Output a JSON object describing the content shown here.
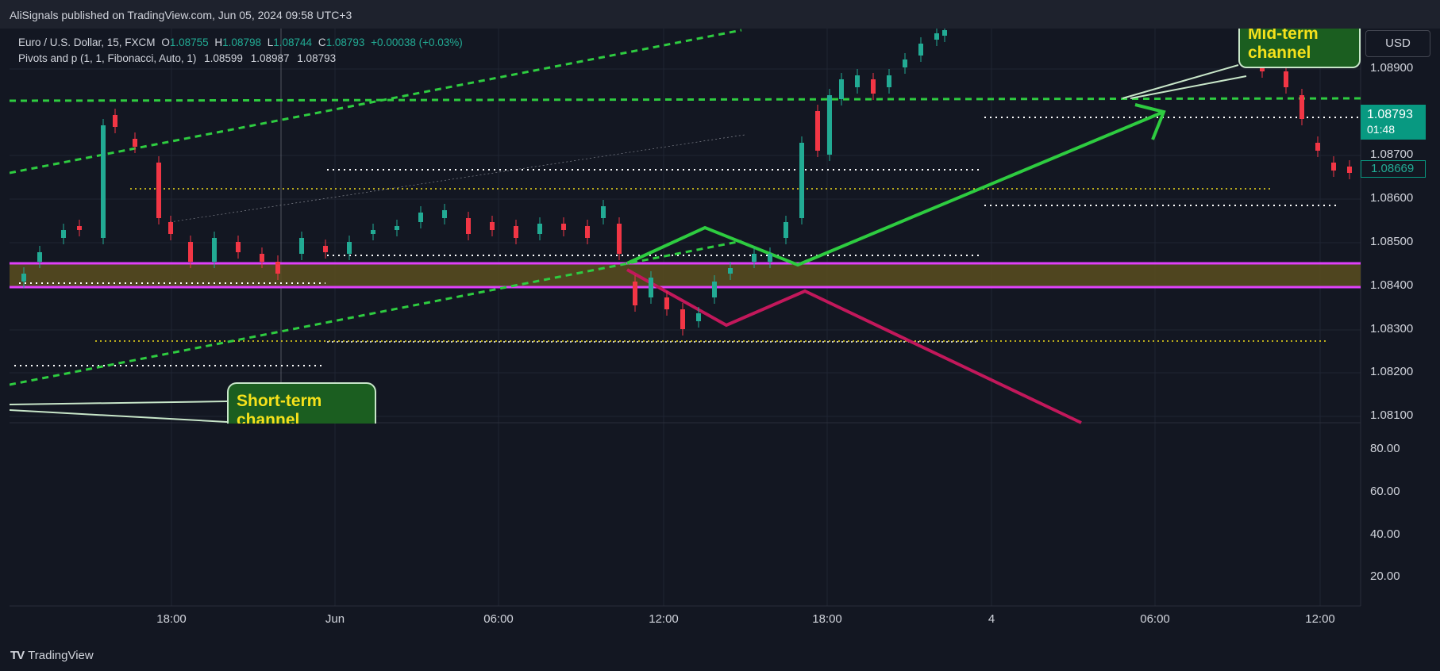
{
  "header": {
    "publisher_line": "AliSignals published on TradingView.com, Jun 05, 2024 09:58 UTC+3"
  },
  "legend": {
    "symbol": "Euro / U.S. Dollar, 15, FXCM",
    "o_label": "O",
    "o_value": "1.08755",
    "h_label": "H",
    "h_value": "1.08798",
    "l_label": "L",
    "l_value": "1.08744",
    "c_label": "C",
    "c_value": "1.08793",
    "change": "+0.00038 (+0.03%)",
    "indicator": "Pivots and p (1, 1, Fibonacci, Auto, 1)",
    "indicator_values": [
      "1.08599",
      "1.08987",
      "1.08793"
    ]
  },
  "price_axis": {
    "currency_button": "USD",
    "labels": [
      "1.08900",
      "1.08700",
      "1.08600",
      "1.08500",
      "1.08400",
      "1.08300",
      "1.08200",
      "1.08100"
    ],
    "current_price": "1.08793",
    "countdown": "01:48",
    "prev_tag": "1.08669",
    "oscillator_labels": [
      "80.00",
      "60.00",
      "40.00",
      "20.00"
    ]
  },
  "time_axis": {
    "labels": [
      "18:00",
      "Jun",
      "06:00",
      "12:00",
      "18:00",
      "4",
      "06:00",
      "12:00"
    ]
  },
  "annotations": {
    "short_term": [
      "Short-term",
      "channel"
    ],
    "mid_term": [
      "Mid-term",
      "channel"
    ]
  },
  "footer": {
    "brand": "TradingView",
    "logo_mark": "TV"
  },
  "colors": {
    "background": "#131722",
    "up": "#089981",
    "down": "#f23645",
    "channel_green": "#00c853",
    "zone_magenta": "#e040fb",
    "zone_fill": "#5b4d1e",
    "pivot_yellow": "#f5e11b",
    "red_projection": "#c2185b"
  },
  "icons": {
    "brand": "tradingview-logo-icon"
  }
}
